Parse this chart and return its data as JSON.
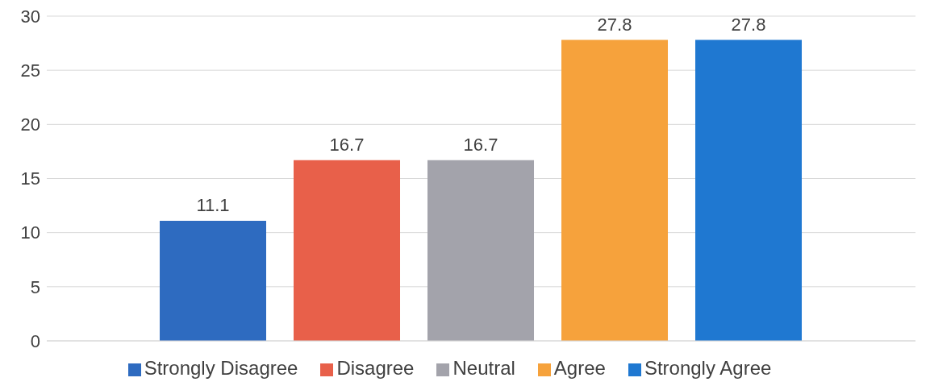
{
  "chart_data": {
    "type": "bar",
    "categories": [
      null
    ],
    "series": [
      {
        "name": "Strongly Disagree",
        "color": "#2e6bc0",
        "values": [
          11.1
        ]
      },
      {
        "name": "Disagree",
        "color": "#e8604a",
        "values": [
          16.7
        ]
      },
      {
        "name": "Neutral",
        "color": "#a3a3ab",
        "values": [
          16.7
        ]
      },
      {
        "name": "Agree",
        "color": "#f6a23c",
        "values": [
          27.8
        ]
      },
      {
        "name": "Strongly Agree",
        "color": "#1f78d1",
        "values": [
          27.8
        ]
      }
    ],
    "ylim": [
      0,
      30
    ],
    "yticks": [
      0,
      5,
      10,
      15,
      20,
      25,
      30
    ],
    "grid": "y",
    "legend": "bottom",
    "data_labels": true
  }
}
